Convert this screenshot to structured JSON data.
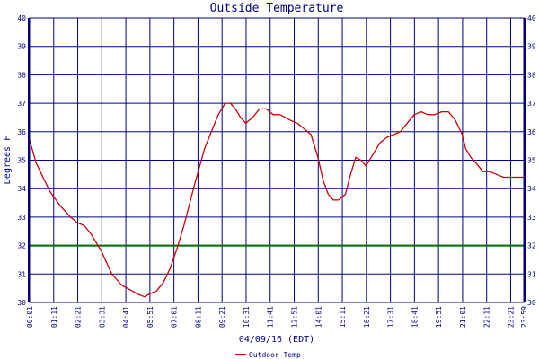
{
  "chart_data": {
    "type": "line",
    "title": "Outside Temperature",
    "ylabel": "Degrees F",
    "xlabel": "04/09/16 (EDT)",
    "ylim": [
      30,
      40
    ],
    "yticks": [
      30,
      31,
      32,
      33,
      34,
      35,
      36,
      37,
      38,
      39,
      40
    ],
    "xlim": [
      "00:01",
      "23:59"
    ],
    "xticks": [
      "00:01",
      "01:11",
      "02:21",
      "03:31",
      "04:41",
      "05:51",
      "07:01",
      "08:11",
      "09:21",
      "10:31",
      "11:41",
      "12:51",
      "14:01",
      "15:11",
      "16:21",
      "17:31",
      "18:41",
      "19:51",
      "21:01",
      "22:11",
      "23:21",
      "23:59"
    ],
    "reference_line": 32,
    "grid": true,
    "legend": "bottom-left",
    "colors": {
      "series": "#cc0000",
      "reference": "#006600",
      "grid": "#000080",
      "text": "#000080"
    },
    "series": [
      {
        "name": "Outdoor Temp",
        "x": [
          "00:01",
          "00:20",
          "00:40",
          "01:00",
          "01:30",
          "02:00",
          "02:20",
          "02:40",
          "03:00",
          "03:30",
          "04:00",
          "04:30",
          "04:45",
          "05:00",
          "05:15",
          "05:35",
          "05:50",
          "06:10",
          "06:30",
          "06:50",
          "07:10",
          "07:30",
          "08:00",
          "08:30",
          "08:50",
          "09:10",
          "09:30",
          "09:45",
          "10:00",
          "10:15",
          "10:30",
          "10:50",
          "11:10",
          "11:30",
          "11:50",
          "12:10",
          "12:40",
          "13:00",
          "13:20",
          "13:40",
          "14:00",
          "14:15",
          "14:30",
          "14:45",
          "15:00",
          "15:20",
          "15:35",
          "15:50",
          "16:05",
          "16:20",
          "16:40",
          "17:00",
          "17:20",
          "17:40",
          "18:00",
          "18:20",
          "18:40",
          "19:00",
          "19:20",
          "19:40",
          "20:00",
          "20:20",
          "20:40",
          "21:00",
          "21:10",
          "21:25",
          "21:40",
          "22:00",
          "22:20",
          "22:40",
          "23:00",
          "23:20",
          "23:59"
        ],
        "y": [
          35.7,
          34.9,
          34.4,
          33.9,
          33.4,
          33.0,
          32.8,
          32.7,
          32.4,
          31.8,
          31.0,
          30.6,
          30.5,
          30.4,
          30.3,
          30.2,
          30.3,
          30.4,
          30.7,
          31.2,
          31.9,
          32.7,
          34.1,
          35.4,
          36.0,
          36.6,
          37.0,
          37.0,
          36.8,
          36.5,
          36.3,
          36.5,
          36.8,
          36.8,
          36.6,
          36.6,
          36.4,
          36.3,
          36.1,
          35.9,
          35.1,
          34.3,
          33.8,
          33.6,
          33.6,
          33.8,
          34.5,
          35.1,
          35.0,
          34.8,
          35.2,
          35.6,
          35.8,
          35.9,
          36.0,
          36.3,
          36.6,
          36.7,
          36.6,
          36.6,
          36.7,
          36.7,
          36.4,
          35.9,
          35.4,
          35.1,
          34.9,
          34.6,
          34.6,
          34.5,
          34.4,
          34.4,
          34.4
        ]
      }
    ]
  }
}
